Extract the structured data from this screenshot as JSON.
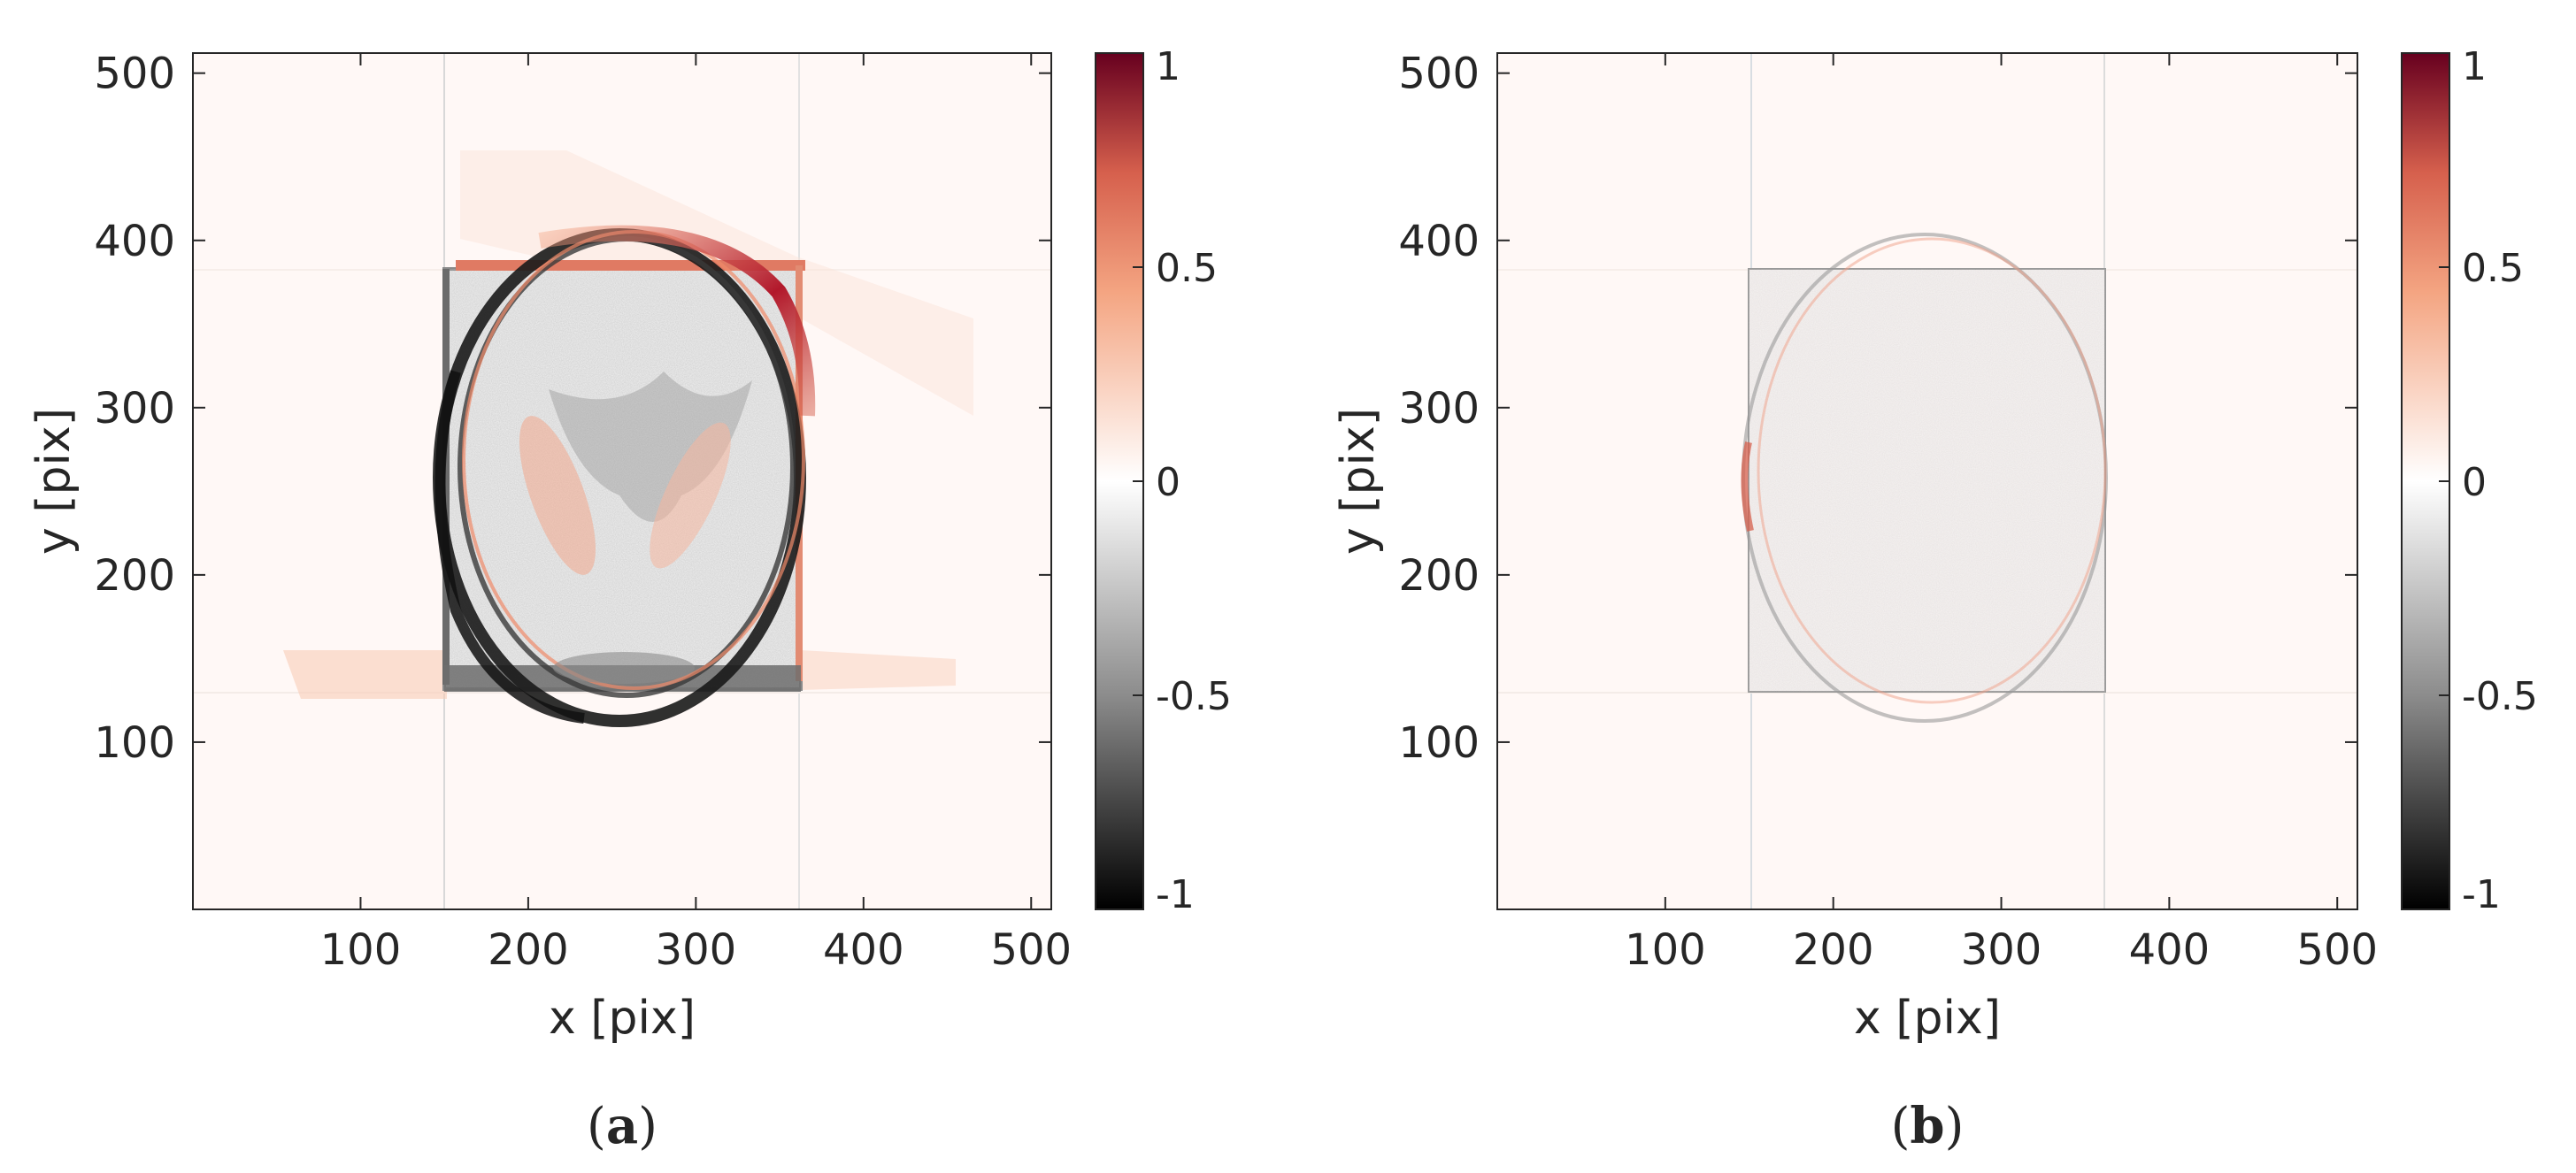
{
  "chart_data": [
    {
      "type": "heatmap",
      "panel_label": "a",
      "xlabel": "x [pix]",
      "ylabel": "y [pix]",
      "xlim": [
        0,
        512
      ],
      "ylim": [
        0,
        512
      ],
      "xticks": [
        100,
        200,
        300,
        400,
        500
      ],
      "yticks": [
        100,
        200,
        300,
        400,
        500
      ],
      "grid": false,
      "colorbar": {
        "ticks": [
          -1,
          -0.5,
          0,
          0.5,
          1
        ],
        "tick_labels": [
          "-1",
          "-0.5",
          "0",
          "0.5",
          "1"
        ],
        "range": [
          -1,
          1
        ],
        "colormap": {
          "low": "#000000",
          "mid_low": "#8c8c8c",
          "mid": "#ffffff",
          "mid_high": "#f4a582",
          "high": "#67001f"
        }
      },
      "features": {
        "square": {
          "x": [
            152,
            365
          ],
          "y": [
            132,
            385
          ]
        },
        "ellipse": {
          "cx": 258,
          "cy": 258,
          "rx": 108,
          "ry": 145
        }
      }
    },
    {
      "type": "heatmap",
      "panel_label": "b",
      "xlabel": "x [pix]",
      "ylabel": "y [pix]",
      "xlim": [
        0,
        512
      ],
      "ylim": [
        0,
        512
      ],
      "xticks": [
        100,
        200,
        300,
        400,
        500
      ],
      "yticks": [
        100,
        200,
        300,
        400,
        500
      ],
      "grid": false,
      "colorbar": {
        "ticks": [
          -1,
          -0.5,
          0,
          0.5,
          1
        ],
        "tick_labels": [
          "-1",
          "-0.5",
          "0",
          "0.5",
          "1"
        ],
        "range": [
          -1,
          1
        ],
        "colormap": {
          "low": "#000000",
          "mid_low": "#8c8c8c",
          "mid": "#ffffff",
          "mid_high": "#f4a582",
          "high": "#67001f"
        }
      },
      "features": {
        "square": {
          "x": [
            152,
            365
          ],
          "y": [
            132,
            385
          ]
        },
        "ellipse": {
          "cx": 258,
          "cy": 258,
          "rx": 108,
          "ry": 145
        }
      }
    }
  ]
}
